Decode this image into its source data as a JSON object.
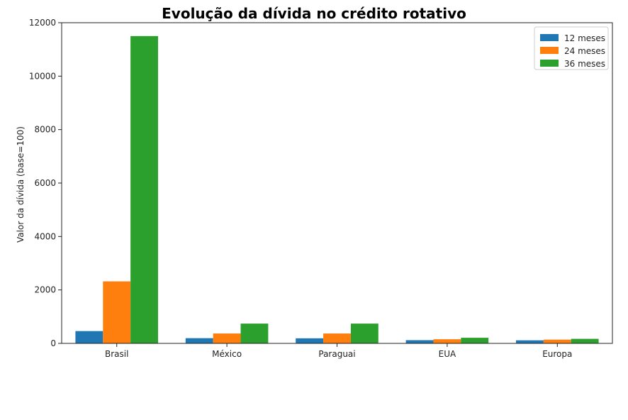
{
  "chart_data": {
    "type": "bar",
    "title": "Evolução da dívida no crédito rotativo",
    "ylabel": "Valor da dívida (base=100)",
    "xlabel": "",
    "categories": [
      "Brasil",
      "México",
      "Paraguai",
      "EUA",
      "Europa"
    ],
    "series": [
      {
        "name": "12 meses",
        "color": "#1f77b4",
        "values": [
          460,
          195,
          190,
          120,
          115
        ]
      },
      {
        "name": "24 meses",
        "color": "#ff7f0e",
        "values": [
          2320,
          370,
          370,
          155,
          140
        ]
      },
      {
        "name": "36 meses",
        "color": "#2ca02c",
        "values": [
          11500,
          740,
          740,
          210,
          170
        ]
      }
    ],
    "ylim": [
      0,
      12000
    ],
    "yticks": [
      0,
      2000,
      4000,
      6000,
      8000,
      10000,
      12000
    ],
    "grid": false,
    "legend_position": "top-right"
  }
}
